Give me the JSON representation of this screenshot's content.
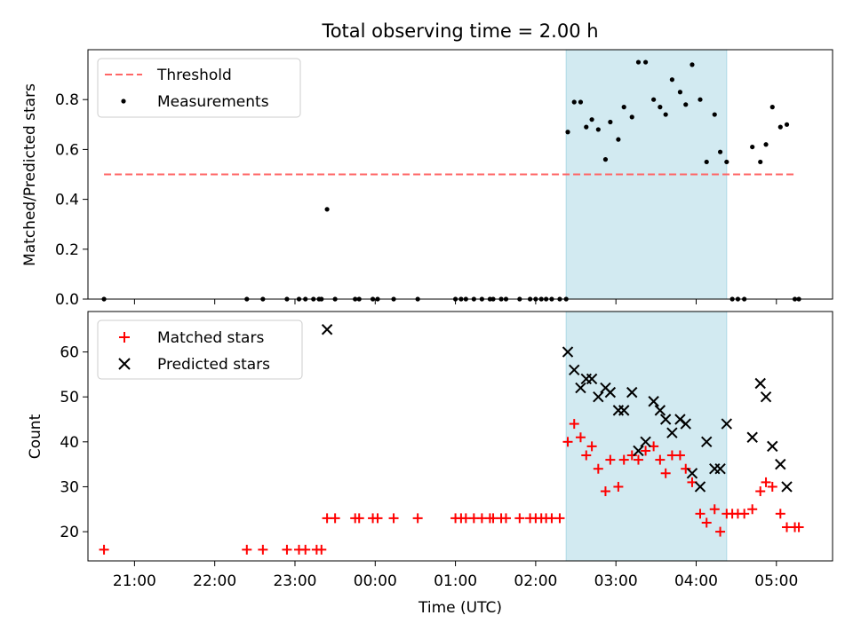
{
  "chart_data": [
    {
      "type": "scatter",
      "title": "Total observing time = 2.00 h",
      "xlabel": "",
      "ylabel": "Matched/Predicted stars",
      "xlim": [
        20.42,
        29.7
      ],
      "ylim": [
        0.0,
        1.0
      ],
      "yticks": [
        0.0,
        0.2,
        0.4,
        0.6,
        0.8
      ],
      "ytick_labels": [
        "0.0",
        "0.2",
        "0.4",
        "0.6",
        "0.8"
      ],
      "shaded_region": {
        "x": [
          26.38,
          28.38
        ],
        "color": "#add8e6"
      },
      "threshold": {
        "name": "Threshold",
        "y": 0.5,
        "x": [
          20.62,
          29.25
        ],
        "color": "#ff6666",
        "style": "dashed"
      },
      "legend": {
        "position": "upper left",
        "entries": [
          "Threshold",
          "Measurements"
        ]
      },
      "series": [
        {
          "name": "Measurements",
          "color": "#000000",
          "marker": "dot",
          "x": [
            20.62,
            22.4,
            22.6,
            22.9,
            23.05,
            23.13,
            23.23,
            23.3,
            23.33,
            23.4,
            23.5,
            23.75,
            23.8,
            23.97,
            24.03,
            24.23,
            24.53,
            25.0,
            25.07,
            25.13,
            25.23,
            25.33,
            25.43,
            25.47,
            25.57,
            25.63,
            25.8,
            25.93,
            26.0,
            26.07,
            26.13,
            26.2,
            26.3,
            26.38
          ],
          "y": [
            0.0,
            0.0,
            0.0,
            0.0,
            0.0,
            0.0,
            0.0,
            0.0,
            0.0,
            0.36,
            0.0,
            0.0,
            0.0,
            0.0,
            0.0,
            0.0,
            0.0,
            0.0,
            0.0,
            0.0,
            0.0,
            0.0,
            0.0,
            0.0,
            0.0,
            0.0,
            0.0,
            0.0,
            0.0,
            0.0,
            0.0,
            0.0,
            0.0,
            0.0
          ]
        },
        {
          "name": "",
          "color": "#000000",
          "marker": "dot",
          "x": [
            26.4,
            26.48,
            26.56,
            26.63,
            26.7,
            26.78,
            26.87,
            26.93,
            27.03,
            27.1,
            27.2,
            27.28,
            27.37,
            27.47,
            27.55,
            27.62,
            27.7,
            27.8,
            27.87,
            27.95,
            28.05,
            28.13,
            28.23,
            28.3,
            28.38,
            28.45,
            28.52,
            28.6,
            28.7,
            28.8,
            28.87,
            28.95,
            29.05,
            29.13,
            29.23,
            29.28
          ],
          "y": [
            0.67,
            0.79,
            0.79,
            0.69,
            0.72,
            0.68,
            0.56,
            0.71,
            0.64,
            0.77,
            0.73,
            0.95,
            0.95,
            0.8,
            0.77,
            0.74,
            0.88,
            0.83,
            0.78,
            0.94,
            0.8,
            0.55,
            0.74,
            0.59,
            0.55,
            0.0,
            0.0,
            0.0,
            0.61,
            0.55,
            0.62,
            0.77,
            0.69,
            0.7,
            0.0,
            0.0
          ]
        }
      ]
    },
    {
      "type": "scatter",
      "title": "",
      "xlabel": "Time (UTC)",
      "ylabel": "Count",
      "xlim": [
        20.42,
        29.7
      ],
      "ylim": [
        13.5,
        69
      ],
      "yticks": [
        20,
        30,
        40,
        50,
        60
      ],
      "ytick_labels": [
        "20",
        "30",
        "40",
        "50",
        "60"
      ],
      "xticks": [
        21,
        22,
        23,
        24,
        25,
        26,
        27,
        28,
        29
      ],
      "xtick_labels": [
        "21:00",
        "22:00",
        "23:00",
        "00:00",
        "01:00",
        "02:00",
        "03:00",
        "04:00",
        "05:00"
      ],
      "shaded_region": {
        "x": [
          26.38,
          28.38
        ],
        "color": "#add8e6"
      },
      "legend": {
        "position": "upper left",
        "entries": [
          "Matched stars",
          "Predicted stars"
        ]
      },
      "series": [
        {
          "name": "Matched stars",
          "color": "#ff0000",
          "marker": "plus",
          "x": [
            20.62,
            22.4,
            22.6,
            22.9,
            23.05,
            23.13,
            23.27,
            23.33,
            23.4,
            23.5,
            23.75,
            23.8,
            23.97,
            24.03,
            24.23,
            24.53,
            25.0,
            25.07,
            25.13,
            25.23,
            25.33,
            25.43,
            25.47,
            25.57,
            25.63,
            25.8,
            25.93,
            26.0,
            26.07,
            26.13,
            26.2,
            26.3,
            26.4,
            26.48,
            26.56,
            26.63,
            26.7,
            26.78,
            26.87,
            26.93,
            27.03,
            27.1,
            27.2,
            27.28,
            27.37,
            27.47,
            27.55,
            27.62,
            27.7,
            27.8,
            27.87,
            27.95,
            28.05,
            28.13,
            28.23,
            28.3,
            28.38,
            28.45,
            28.52,
            28.6,
            28.7,
            28.8,
            28.87,
            28.95,
            29.05,
            29.13,
            29.23,
            29.28
          ],
          "y": [
            16,
            16,
            16,
            16,
            16,
            16,
            16,
            16,
            23,
            23,
            23,
            23,
            23,
            23,
            23,
            23,
            23,
            23,
            23,
            23,
            23,
            23,
            23,
            23,
            23,
            23,
            23,
            23,
            23,
            23,
            23,
            23,
            40,
            44,
            41,
            37,
            39,
            34,
            29,
            36,
            30,
            36,
            37,
            36,
            38,
            39,
            36,
            33,
            37,
            37,
            34,
            31,
            24,
            22,
            25,
            20,
            24,
            24,
            24,
            24,
            25,
            29,
            31,
            30,
            24,
            21,
            21,
            21
          ]
        },
        {
          "name": "Predicted stars",
          "color": "#000000",
          "marker": "x",
          "x": [
            23.4,
            26.4,
            26.48,
            26.56,
            26.63,
            26.7,
            26.78,
            26.87,
            26.93,
            27.03,
            27.1,
            27.2,
            27.28,
            27.37,
            27.47,
            27.55,
            27.62,
            27.7,
            27.8,
            27.87,
            27.95,
            28.05,
            28.13,
            28.23,
            28.3,
            28.38,
            28.7,
            28.8,
            28.87,
            28.95,
            29.05,
            29.13
          ],
          "y": [
            65,
            60,
            56,
            52,
            54,
            54,
            50,
            52,
            51,
            47,
            47,
            51,
            38,
            40,
            49,
            47,
            45,
            42,
            45,
            44,
            33,
            30,
            40,
            34,
            34,
            44,
            41,
            53,
            50,
            39,
            35,
            30
          ]
        }
      ]
    }
  ]
}
